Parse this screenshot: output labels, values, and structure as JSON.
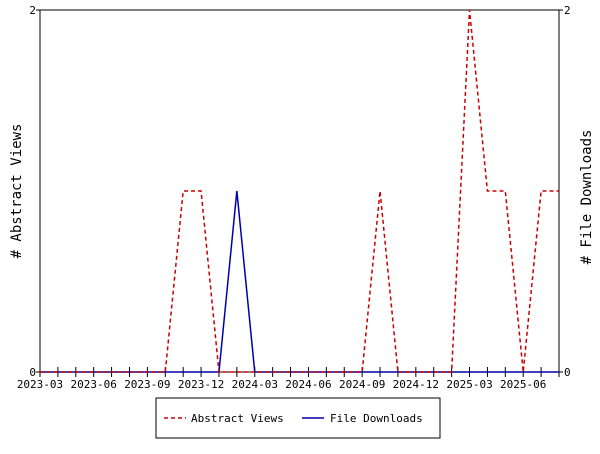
{
  "chart_data": {
    "type": "line",
    "title": "",
    "ylabel_left": "# Abstract Views",
    "ylabel_right": "# File Downloads",
    "x_tick_labels": [
      "2023-03",
      "2023-06",
      "2023-09",
      "2023-12",
      "2024-03",
      "2024-06",
      "2024-09",
      "2024-12",
      "2025-03",
      "2025-06"
    ],
    "y_left_ticks": [
      "0",
      "2"
    ],
    "y_right_ticks": [
      "0",
      "2"
    ],
    "ylim_left": [
      0,
      2
    ],
    "ylim_right": [
      0,
      2
    ],
    "x_months": [
      "2023-03",
      "2023-04",
      "2023-05",
      "2023-06",
      "2023-07",
      "2023-08",
      "2023-09",
      "2023-10",
      "2023-11",
      "2023-12",
      "2024-01",
      "2024-02",
      "2024-03",
      "2024-04",
      "2024-05",
      "2024-06",
      "2024-07",
      "2024-08",
      "2024-09",
      "2024-10",
      "2024-11",
      "2024-12",
      "2025-01",
      "2025-02",
      "2025-03",
      "2025-04",
      "2025-05",
      "2025-06",
      "2025-07",
      "2025-08"
    ],
    "series": [
      {
        "name": "Abstract Views",
        "axis": "left",
        "color": "#cc0000",
        "dash": "dashed",
        "values": [
          0,
          0,
          0,
          0,
          0,
          0,
          0,
          0,
          1,
          1,
          0,
          0,
          0,
          0,
          0,
          0,
          0,
          0,
          0,
          1,
          0,
          0,
          0,
          0,
          2,
          1,
          1,
          0,
          1,
          1
        ]
      },
      {
        "name": "File Downloads",
        "axis": "right",
        "color": "#0000aa",
        "dash": "solid",
        "values": [
          0,
          0,
          0,
          0,
          0,
          0,
          0,
          0,
          0,
          0,
          0,
          1,
          0,
          0,
          0,
          0,
          0,
          0,
          0,
          0,
          0,
          0,
          0,
          0,
          0,
          0,
          0,
          0,
          0,
          0
        ]
      }
    ],
    "legend_position": "bottom-center"
  }
}
